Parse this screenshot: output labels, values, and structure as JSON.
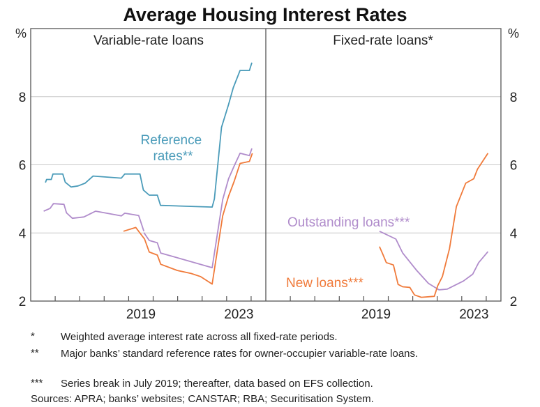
{
  "chart_data": [
    {
      "type": "line",
      "title": "Average Housing Interest Rates",
      "panel_title": "Variable-rate loans",
      "ylabel": "%",
      "ylim": [
        2,
        10
      ],
      "yticks": [
        2,
        4,
        6,
        8
      ],
      "xlim": [
        2015,
        2024.6
      ],
      "xtick_labels": [
        {
          "year": 2019,
          "label": "2019"
        },
        {
          "year": 2023,
          "label": "2023"
        }
      ],
      "grid": true,
      "series": [
        {
          "name": "Reference rates**",
          "label": "Reference rates**",
          "color": "#4a9bb9",
          "segments": [
            [
              [
                2015.6,
                5.48
              ],
              [
                2015.65,
                5.57
              ],
              [
                2015.84,
                5.57
              ],
              [
                2015.91,
                5.73
              ],
              [
                2016.31,
                5.73
              ],
              [
                2016.41,
                5.49
              ],
              [
                2016.65,
                5.35
              ],
              [
                2016.93,
                5.38
              ],
              [
                2017.22,
                5.46
              ],
              [
                2017.55,
                5.67
              ],
              [
                2018.7,
                5.61
              ],
              [
                2018.84,
                5.73
              ],
              [
                2019.46,
                5.73
              ],
              [
                2019.6,
                5.26
              ],
              [
                2019.84,
                5.11
              ],
              [
                2020.17,
                5.11
              ],
              [
                2020.3,
                4.81
              ],
              [
                2022.41,
                4.76
              ],
              [
                2022.5,
                5.0
              ],
              [
                2022.79,
                7.1
              ],
              [
                2023.08,
                7.77
              ],
              [
                2023.27,
                8.26
              ],
              [
                2023.55,
                8.77
              ],
              [
                2023.93,
                8.77
              ],
              [
                2024.03,
                9.0
              ]
            ]
          ]
        },
        {
          "name": "Outstanding loans",
          "color": "#b08ccb",
          "segments": [
            [
              [
                2015.53,
                4.64
              ],
              [
                2015.79,
                4.72
              ],
              [
                2015.93,
                4.86
              ],
              [
                2016.36,
                4.84
              ],
              [
                2016.46,
                4.59
              ],
              [
                2016.7,
                4.43
              ],
              [
                2017.17,
                4.47
              ],
              [
                2017.65,
                4.64
              ],
              [
                2018.7,
                4.5
              ],
              [
                2018.84,
                4.58
              ],
              [
                2019.41,
                4.51
              ],
              [
                2019.62,
                4.05
              ]
            ],
            [
              [
                2019.62,
                4.01
              ],
              [
                2019.84,
                3.78
              ],
              [
                2020.17,
                3.71
              ],
              [
                2020.31,
                3.41
              ],
              [
                2022.41,
                2.98
              ],
              [
                2022.84,
                4.98
              ],
              [
                2023.08,
                5.59
              ],
              [
                2023.31,
                5.97
              ],
              [
                2023.55,
                6.34
              ],
              [
                2023.93,
                6.27
              ],
              [
                2024.03,
                6.48
              ]
            ]
          ]
        },
        {
          "name": "New loans",
          "color": "#f07a3a",
          "segments": [
            [
              [
                2018.79,
                4.05
              ],
              [
                2019.29,
                4.16
              ],
              [
                2019.65,
                3.82
              ],
              [
                2019.84,
                3.44
              ],
              [
                2020.17,
                3.35
              ],
              [
                2020.31,
                3.08
              ],
              [
                2020.98,
                2.9
              ],
              [
                2021.55,
                2.81
              ],
              [
                2021.93,
                2.72
              ],
              [
                2022.41,
                2.5
              ],
              [
                2022.84,
                4.5
              ],
              [
                2023.08,
                5.08
              ],
              [
                2023.31,
                5.52
              ],
              [
                2023.55,
                6.04
              ],
              [
                2023.93,
                6.1
              ],
              [
                2024.05,
                6.34
              ]
            ]
          ]
        }
      ]
    },
    {
      "type": "line",
      "panel_title": "Fixed-rate loans*",
      "ylabel": "%",
      "ylim": [
        2,
        10
      ],
      "yticks": [
        2,
        4,
        6,
        8
      ],
      "xlim": [
        2015,
        2024.6
      ],
      "xtick_labels": [
        {
          "year": 2019,
          "label": "2019"
        },
        {
          "year": 2023,
          "label": "2023"
        }
      ],
      "grid": true,
      "series": [
        {
          "name": "Outstanding loans***",
          "label": "Outstanding loans***",
          "color": "#b08ccb",
          "segments": [
            [
              [
                2019.64,
                4.05
              ],
              [
                2020.31,
                3.82
              ],
              [
                2020.59,
                3.41
              ],
              [
                2021.16,
                2.9
              ],
              [
                2021.64,
                2.52
              ],
              [
                2022.07,
                2.33
              ],
              [
                2022.4,
                2.35
              ],
              [
                2023.07,
                2.59
              ],
              [
                2023.45,
                2.79
              ],
              [
                2023.69,
                3.13
              ],
              [
                2024.07,
                3.45
              ]
            ]
          ]
        },
        {
          "name": "New loans***",
          "label": "New loans***",
          "color": "#f07a3a",
          "segments": [
            [
              [
                2019.64,
                3.6
              ],
              [
                2019.78,
                3.37
              ],
              [
                2019.92,
                3.13
              ],
              [
                2020.21,
                3.06
              ],
              [
                2020.4,
                2.49
              ],
              [
                2020.59,
                2.42
              ],
              [
                2020.88,
                2.4
              ],
              [
                2021.07,
                2.18
              ],
              [
                2021.35,
                2.11
              ],
              [
                2021.88,
                2.14
              ],
              [
                2022.02,
                2.45
              ],
              [
                2022.21,
                2.72
              ],
              [
                2022.5,
                3.54
              ],
              [
                2022.78,
                4.77
              ],
              [
                2023.16,
                5.46
              ],
              [
                2023.49,
                5.59
              ],
              [
                2023.64,
                5.87
              ],
              [
                2024.07,
                6.34
              ]
            ]
          ]
        }
      ]
    }
  ],
  "footnotes": [
    {
      "marker": "*",
      "text": "Weighted average interest rate across all fixed-rate periods."
    },
    {
      "marker": "**",
      "text": "Major banks’ standard reference rates for owner-occupier variable-rate loans."
    },
    {
      "marker": "***",
      "text": "Series break in July 2019; thereafter, data based on EFS collection."
    }
  ],
  "sources": "Sources: APRA; banks’ websites; CANSTAR; RBA; Securitisation System."
}
